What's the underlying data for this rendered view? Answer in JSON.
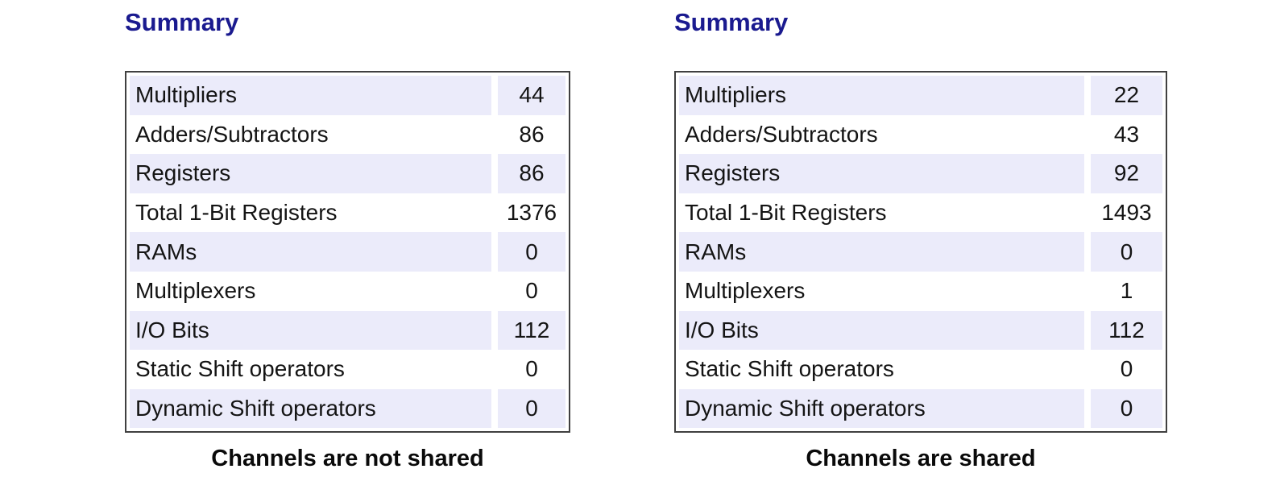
{
  "colors": {
    "title_navy": "#1A1A8F",
    "row_stripe": "#EBEBFA",
    "table_border": "#404040",
    "caption_text": "#0a0a0a",
    "background": "#ffffff"
  },
  "panels": [
    {
      "title": "Summary",
      "caption": "Channels are not shared",
      "rows": [
        {
          "label": "Multipliers",
          "value": "44"
        },
        {
          "label": "Adders/Subtractors",
          "value": "86"
        },
        {
          "label": "Registers",
          "value": "86"
        },
        {
          "label": "Total 1-Bit Registers",
          "value": "1376"
        },
        {
          "label": "RAMs",
          "value": "0"
        },
        {
          "label": "Multiplexers",
          "value": "0"
        },
        {
          "label": "I/O Bits",
          "value": "112"
        },
        {
          "label": "Static Shift operators",
          "value": "0"
        },
        {
          "label": "Dynamic Shift operators",
          "value": "0"
        }
      ]
    },
    {
      "title": "Summary",
      "caption": "Channels are shared",
      "rows": [
        {
          "label": "Multipliers",
          "value": "22"
        },
        {
          "label": "Adders/Subtractors",
          "value": "43"
        },
        {
          "label": "Registers",
          "value": "92"
        },
        {
          "label": "Total 1-Bit Registers",
          "value": "1493"
        },
        {
          "label": "RAMs",
          "value": "0"
        },
        {
          "label": "Multiplexers",
          "value": "1"
        },
        {
          "label": "I/O Bits",
          "value": "112"
        },
        {
          "label": "Static Shift operators",
          "value": "0"
        },
        {
          "label": "Dynamic Shift operators",
          "value": "0"
        }
      ]
    }
  ]
}
